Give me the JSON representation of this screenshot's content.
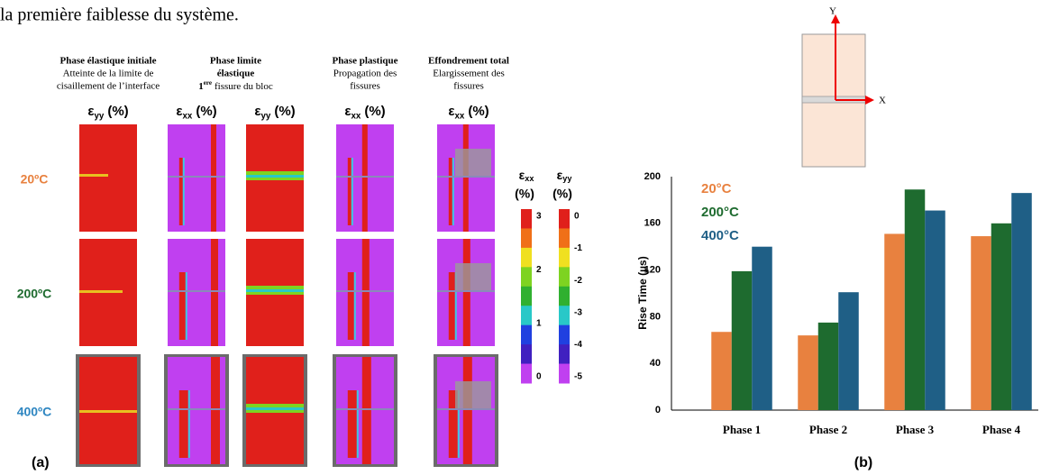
{
  "text": "la première faiblesse du système.",
  "figure_a": {
    "label": "(a)",
    "columns": [
      {
        "phase": [
          "Phase élastique  initiale"
        ],
        "description": [
          "Atteinte de la limite de",
          "cisaillement de l’interface"
        ],
        "strains": [
          {
            "symbol": "ε",
            "sub": "yy",
            "unit": "(%)"
          }
        ]
      },
      {
        "phase": [
          "Phase limite",
          "élastique"
        ],
        "note": {
          "num": "1",
          "sup": "ere",
          "rest": "fissure du bloc"
        },
        "strains": [
          {
            "symbol": "ε",
            "sub": "xx",
            "unit": "(%)"
          },
          {
            "symbol": "ε",
            "sub": "yy",
            "unit": "(%)"
          }
        ]
      },
      {
        "phase": [
          "Phase plastique"
        ],
        "description": [
          "Propagation des",
          "fissures"
        ],
        "strains": [
          {
            "symbol": "ε",
            "sub": "xx",
            "unit": "(%)"
          }
        ]
      },
      {
        "phase": [
          "Effondrement total"
        ],
        "description": [
          "Elargissement des",
          "fissures"
        ],
        "strains": [
          {
            "symbol": "ε",
            "sub": "xx",
            "unit": "(%)"
          }
        ]
      }
    ],
    "rows": [
      {
        "label": "20ºC",
        "color": "#e8813f"
      },
      {
        "label": "200ºC",
        "color": "#1e6b2f"
      },
      {
        "label": "400ºC",
        "color": "#2e86c1"
      }
    ],
    "colorbars": [
      {
        "symbol": "ε",
        "sub": "xx",
        "unit": "(%)",
        "ticks": [
          3,
          2,
          1,
          0
        ]
      },
      {
        "symbol": "ε",
        "sub": "yy",
        "unit": "(%)",
        "ticks": [
          0,
          -1,
          -2,
          -3,
          -4,
          -5
        ]
      }
    ]
  },
  "figure_b": {
    "label": "(b)",
    "axes": [
      "Y",
      "X"
    ]
  },
  "chart_data": {
    "type": "bar",
    "y_label": "Rise Time (µs)",
    "categories": [
      "Phase 1",
      "Phase 2",
      "Phase 3",
      "Phase 4"
    ],
    "series": [
      {
        "name": "20°C",
        "color": "#e8813f",
        "values": [
          67,
          64,
          151,
          149
        ]
      },
      {
        "name": "200°C",
        "color": "#1e6b2f",
        "values": [
          119,
          75,
          189,
          160
        ]
      },
      {
        "name": "400°C",
        "color": "#1f5f86",
        "values": [
          140,
          101,
          171,
          186
        ]
      }
    ],
    "ylim": [
      0,
      200
    ],
    "yticks": [
      0,
      40,
      80,
      120,
      160,
      200
    ],
    "grid": false,
    "legend": "top-left"
  }
}
